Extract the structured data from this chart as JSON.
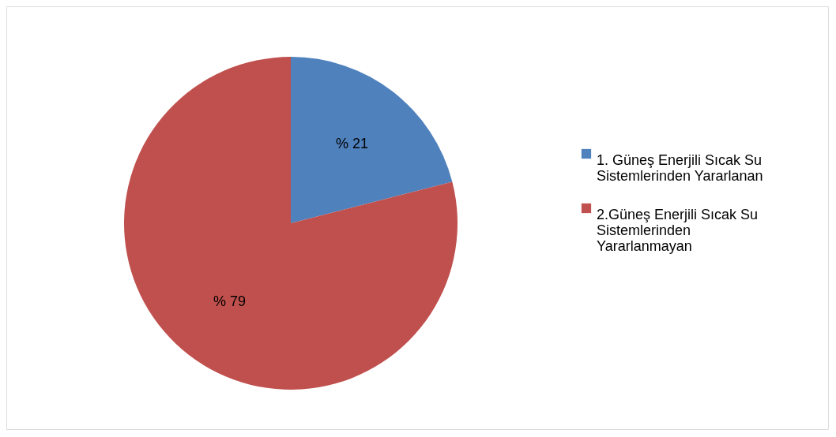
{
  "chart_data": {
    "type": "pie",
    "categories": [
      "1. Güneş Enerjili Sıcak Su Sistemlerinden Yararlanan",
      "2.Güneş Enerjili Sıcak Su Sistemlerinden Yararlanmayan"
    ],
    "values": [
      21,
      79
    ],
    "colors": [
      "#4f81bd",
      "#c0504d"
    ],
    "value_labels": [
      "% 21",
      "% 79"
    ],
    "legend": "right"
  }
}
